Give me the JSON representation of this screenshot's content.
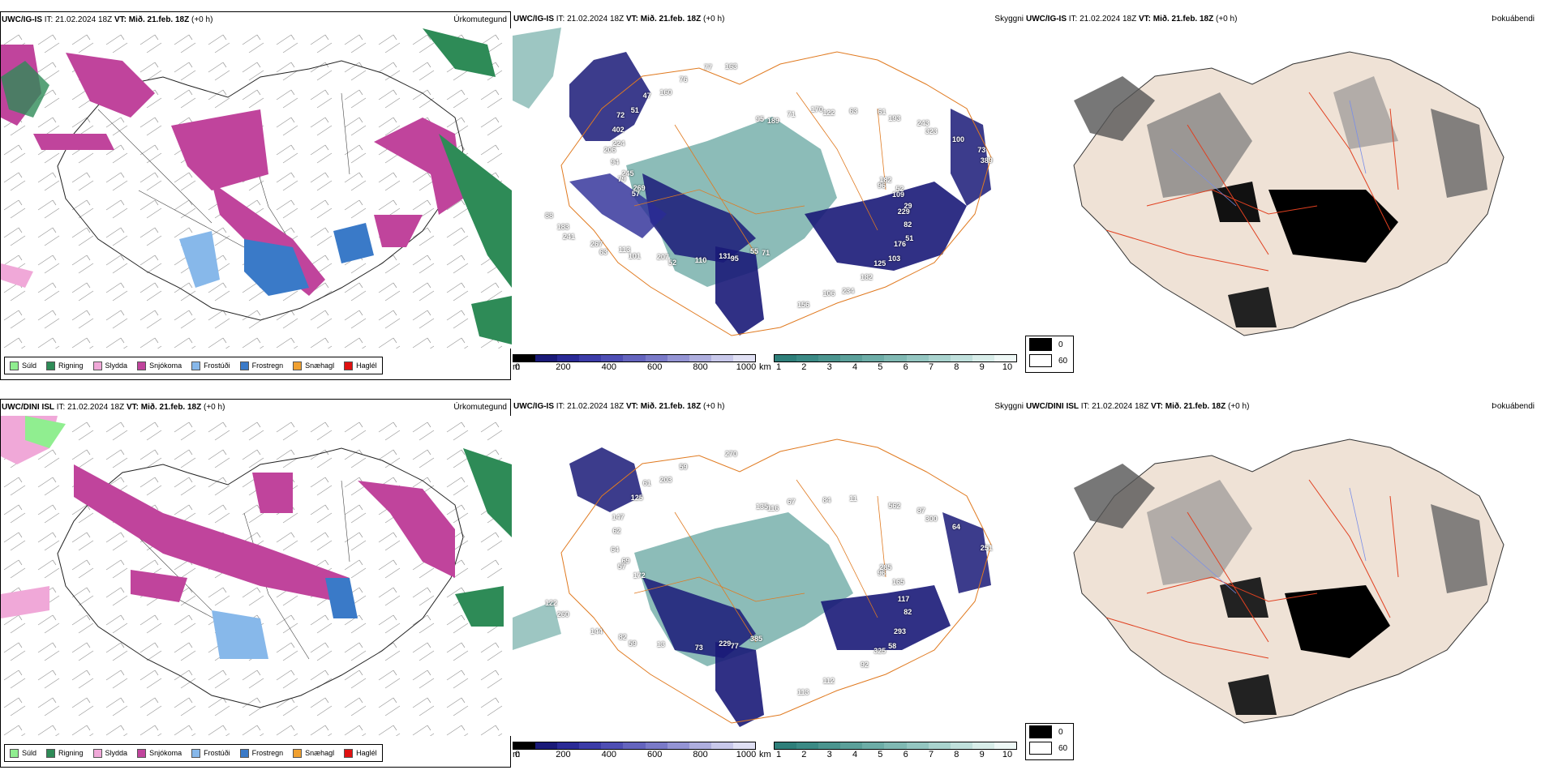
{
  "precip_panels": [
    {
      "model": "UWC/IG-IS",
      "it_label": "IT:",
      "it_value": "21.02.2024 18Z",
      "vt_label": "VT:",
      "vt_value": "Mið. 21.feb. 18Z",
      "offset": "(+0 h)",
      "title": "Úrkomutegund"
    },
    {
      "model": "UWC/DINI ISL",
      "it_label": "IT:",
      "it_value": "21.02.2024 18Z",
      "vt_label": "VT:",
      "vt_value": "Mið. 21.feb. 18Z",
      "offset": "(+0 h)",
      "title": "Úrkomutegund"
    }
  ],
  "visibility_panels": [
    {
      "model": "UWC/IG-IS",
      "it_label": "IT:",
      "it_value": "21.02.2024 18Z",
      "vt_label": "VT:",
      "vt_value": "Mið. 21.feb. 18Z",
      "offset": "(+0 h)",
      "title": "Skyggni"
    },
    {
      "model": "UWC/IG-IS",
      "it_label": "IT:",
      "it_value": "21.02.2024 18Z",
      "vt_label": "VT:",
      "vt_value": "Mið. 21.feb. 18Z",
      "offset": "(+0 h)",
      "title": "Skyggni"
    }
  ],
  "fog_panels": [
    {
      "model": "UWC/IG-IS",
      "it_label": "IT:",
      "it_value": "21.02.2024 18Z",
      "vt_label": "VT:",
      "vt_value": "Mið. 21.feb. 18Z",
      "offset": "(+0 h)",
      "title": "Þokuábendi"
    },
    {
      "model": "UWC/DINI ISL",
      "it_label": "IT:",
      "it_value": "21.02.2024 18Z",
      "vt_label": "VT:",
      "vt_value": "Mið. 21.feb. 18Z",
      "offset": "(+0 h)",
      "title": "Þokuábendi"
    }
  ],
  "precip_legend": [
    {
      "label": "Súld",
      "color": "#90ee90"
    },
    {
      "label": "Rigning",
      "color": "#2e8b57"
    },
    {
      "label": "Slydda",
      "color": "#f0a8d8"
    },
    {
      "label": "Snjókoma",
      "color": "#c0449c"
    },
    {
      "label": "Frostúði",
      "color": "#87b8ea"
    },
    {
      "label": "Frostregn",
      "color": "#3a7ac8"
    },
    {
      "label": "Snæhagl",
      "color": "#f0a030"
    },
    {
      "label": "Haglél",
      "color": "#e01010"
    }
  ],
  "height_colorbar": {
    "unit": "m",
    "ticks": [
      "0",
      "200",
      "400",
      "600",
      "800",
      "1000"
    ],
    "colors": [
      "#000000",
      "#1a1a78",
      "#2a2a96",
      "#3c3ca8",
      "#4e4eb4",
      "#6464be",
      "#7a7ac8",
      "#9494d4",
      "#aeaede",
      "#c8c8ea",
      "#e0e0f4"
    ]
  },
  "visibility_colorbar": {
    "unit": "km",
    "ticks": [
      "1",
      "2",
      "3",
      "4",
      "5",
      "6",
      "7",
      "8",
      "9",
      "10"
    ],
    "colors": [
      "#2e7f7a",
      "#3b8a85",
      "#4b958f",
      "#5ba09a",
      "#6dada7",
      "#80b9b3",
      "#94c6c1",
      "#a9d3ce",
      "#c0e0dc",
      "#d8ede9",
      "#eef8f6"
    ]
  },
  "fog_legend": [
    {
      "label": "0",
      "color": "#000000"
    },
    {
      "label": "60",
      "color": "#ffffff"
    }
  ],
  "visibility_values_top": [
    "96",
    "113",
    "189",
    "125",
    "245",
    "323",
    "131",
    "160",
    "229",
    "183",
    "122",
    "106",
    "224",
    "389",
    "207",
    "163",
    "176",
    "269",
    "193",
    "55",
    "51",
    "109",
    "267",
    "71",
    "182",
    "94",
    "100",
    "110",
    "76",
    "82",
    "88",
    "63",
    "156",
    "402",
    "182",
    "101",
    "95",
    "103",
    "79",
    "243",
    "95",
    "47",
    "29",
    "241",
    "170",
    "234",
    "206",
    "73",
    "52",
    "77",
    "51",
    "57",
    "61",
    "71",
    "72",
    "52",
    "63"
  ],
  "visibility_values_bottom": [
    "96",
    "82",
    "116",
    "325",
    "69",
    "300",
    "229",
    "203",
    "117",
    "260",
    "84",
    "112",
    "62",
    "251",
    "13",
    "270",
    "293",
    "172",
    "562",
    "385",
    "125",
    "165",
    "144",
    "67",
    "92",
    "64",
    "64",
    "73",
    "59",
    "82",
    "122",
    "11",
    "113",
    "147",
    "285",
    "59",
    "135",
    "58",
    "57",
    "87",
    "77",
    "61"
  ]
}
